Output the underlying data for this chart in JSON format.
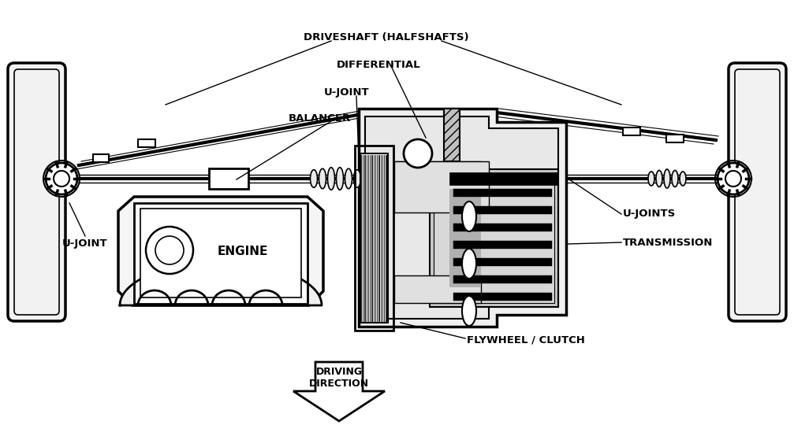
{
  "bg_color": "#ffffff",
  "line_color": "#000000",
  "labels": {
    "driveshaft": "DRIVESHAFT (HALFSHAFTS)",
    "differential": "DIFFERENTIAL",
    "ujoint_top": "U-JOINT",
    "balancer": "BALANCER",
    "ujoint_left": "U-JOINT",
    "ujoint_right": "U-JOINTS",
    "transmission": "TRANSMISSION",
    "flywheel": "FLYWHEEL / CLUTCH",
    "engine": "ENGINE",
    "driving_direction": "DRIVING\nDIRECTION"
  },
  "figsize": [
    10.07,
    5.54
  ],
  "dpi": 100
}
